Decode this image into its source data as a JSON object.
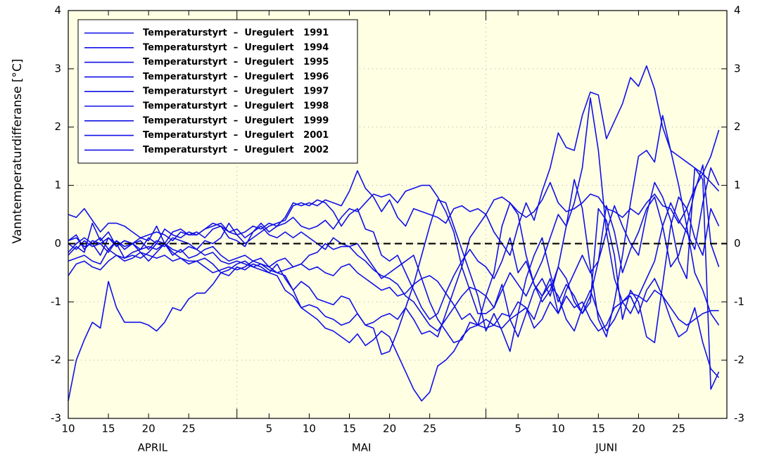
{
  "chart_data": {
    "type": "line",
    "y_label": "Vanntemperaturdifferanse [°C]",
    "months": [
      "APRIL",
      "MAI",
      "JUNI"
    ],
    "categories": [
      "10",
      null,
      null,
      null,
      null,
      "15",
      null,
      null,
      null,
      null,
      "20",
      null,
      null,
      null,
      null,
      "25",
      null,
      null,
      null,
      null,
      null,
      null,
      null,
      null,
      null,
      "5",
      null,
      null,
      null,
      null,
      "10",
      null,
      null,
      null,
      null,
      "15",
      null,
      null,
      null,
      null,
      "20",
      null,
      null,
      null,
      null,
      "25",
      null,
      null,
      null,
      null,
      null,
      null,
      null,
      null,
      null,
      null,
      "5",
      null,
      null,
      null,
      null,
      "10",
      null,
      null,
      null,
      null,
      "15",
      null,
      null,
      null,
      null,
      "20",
      null,
      null,
      null,
      null,
      "25",
      null,
      null,
      null,
      null,
      null
    ],
    "ylim": [
      -3,
      4
    ],
    "yticks": [
      -3,
      -2,
      -1,
      0,
      1,
      2,
      3,
      4
    ],
    "grid": true,
    "hline": 0,
    "series": [
      {
        "name": "Temperaturstyrt  –  Uregulert   1991",
        "color": "#1010e8",
        "values": [
          -2.7,
          -2.0,
          -1.65,
          -1.35,
          -1.45,
          -0.65,
          -1.1,
          -1.35,
          -1.35,
          -1.35,
          -1.4,
          -1.5,
          -1.35,
          -1.1,
          -1.15,
          -0.95,
          -0.85,
          -0.85,
          -0.7,
          -0.5,
          -0.55,
          -0.4,
          -0.45,
          -0.35,
          -0.4,
          -0.5,
          -0.55,
          -0.8,
          -0.9,
          -1.1,
          -1.2,
          -1.3,
          -1.45,
          -1.5,
          -1.6,
          -1.7,
          -1.55,
          -1.75,
          -1.65,
          -1.5,
          -1.6,
          -1.9,
          -2.2,
          -2.5,
          -2.7,
          -2.55,
          -2.1,
          -2.0,
          -1.85,
          -1.6,
          -1.45,
          -1.4,
          -1.45,
          -1.4,
          -1.45,
          -1.3,
          -1.2,
          -1.1,
          -1.45,
          -1.3,
          -1.0,
          -1.2,
          -0.9,
          -1.1,
          -1.0,
          -1.3,
          -1.5,
          -1.4,
          -1.1,
          -1.0,
          -0.85,
          -0.9,
          -1.0,
          -0.8,
          -0.9,
          -1.1,
          -1.3,
          -1.4,
          -1.3,
          -1.2,
          -1.15,
          -1.15
        ]
      },
      {
        "name": "Temperaturstyrt  –  Uregulert   1994",
        "color": "#1010e8",
        "values": [
          0.5,
          0.45,
          0.6,
          0.4,
          0.2,
          0.35,
          0.35,
          0.3,
          0.2,
          0.1,
          0.15,
          0.2,
          0.15,
          0.05,
          0.2,
          0.15,
          0.15,
          0.25,
          0.3,
          0.35,
          0.2,
          0.15,
          0.2,
          0.3,
          0.25,
          0.35,
          0.3,
          0.45,
          0.7,
          0.65,
          0.7,
          0.65,
          0.75,
          0.7,
          0.65,
          0.9,
          1.25,
          0.95,
          0.8,
          0.55,
          0.75,
          0.45,
          0.3,
          0.6,
          0.55,
          0.5,
          0.45,
          0.35,
          0.6,
          0.65,
          0.55,
          0.6,
          0.5,
          0.75,
          0.8,
          0.7,
          0.55,
          0.45,
          0.55,
          0.75,
          1.05,
          0.7,
          0.55,
          0.6,
          0.7,
          0.85,
          0.8,
          0.6,
          0.55,
          0.45,
          0.6,
          0.5,
          0.7,
          0.85,
          0.65,
          0.6,
          0.35,
          0.6,
          0.95,
          1.2,
          1.05,
          0.9
        ]
      },
      {
        "name": "Temperaturstyrt  –  Uregulert   1995",
        "color": "#1010e8",
        "values": [
          0.05,
          0.1,
          -0.05,
          0.0,
          0.1,
          -0.1,
          0.05,
          -0.05,
          0.0,
          0.05,
          -0.1,
          0.05,
          0.0,
          -0.1,
          -0.15,
          -0.05,
          -0.1,
          -0.2,
          -0.15,
          -0.3,
          -0.35,
          -0.3,
          -0.35,
          -0.4,
          -0.45,
          -0.5,
          -0.35,
          -0.6,
          -0.8,
          -0.65,
          -0.75,
          -0.95,
          -1.0,
          -1.05,
          -0.9,
          -0.95,
          -1.2,
          -1.4,
          -1.35,
          -1.25,
          -1.2,
          -1.3,
          -1.1,
          -1.3,
          -1.55,
          -1.5,
          -1.6,
          -1.2,
          -0.8,
          -0.4,
          0.1,
          0.3,
          0.5,
          0.2,
          0.0,
          -0.2,
          0.3,
          0.7,
          0.4,
          0.9,
          1.3,
          1.9,
          1.65,
          1.6,
          2.2,
          2.6,
          2.55,
          1.8,
          2.1,
          2.4,
          2.85,
          2.7,
          3.05,
          2.65,
          2.0,
          1.6,
          1.5,
          1.4,
          1.3,
          1.2,
          1.5,
          1.95
        ]
      },
      {
        "name": "Temperaturstyrt  –  Uregulert   1996",
        "color": "#1010e8",
        "values": [
          -0.3,
          -0.25,
          -0.2,
          -0.3,
          -0.35,
          -0.1,
          -0.2,
          -0.3,
          -0.25,
          -0.15,
          -0.2,
          -0.25,
          -0.2,
          -0.3,
          -0.25,
          -0.35,
          -0.3,
          -0.4,
          -0.5,
          -0.45,
          -0.4,
          -0.45,
          -0.4,
          -0.3,
          -0.35,
          -0.4,
          -0.3,
          -0.25,
          -0.4,
          -0.35,
          -0.2,
          -0.15,
          0.0,
          -0.1,
          -0.05,
          -0.05,
          -0.2,
          -0.3,
          -0.45,
          -0.55,
          -0.6,
          -0.7,
          -0.9,
          -1.0,
          -1.2,
          -1.4,
          -1.5,
          -1.3,
          -1.1,
          -0.9,
          -0.75,
          -0.8,
          -0.9,
          -1.1,
          -0.8,
          -0.5,
          -0.7,
          -0.9,
          -0.6,
          -0.3,
          0.1,
          0.5,
          0.3,
          0.7,
          1.3,
          2.5,
          1.6,
          0.2,
          -0.6,
          -1.0,
          -1.2,
          -0.9,
          -0.6,
          -0.3,
          0.3,
          0.7,
          0.4,
          0.2,
          -0.1,
          0.7,
          1.3,
          1.0
        ]
      },
      {
        "name": "Temperaturstyrt  –  Uregulert   1997",
        "color": "#1010e8",
        "values": [
          -0.55,
          -0.35,
          -0.3,
          -0.4,
          -0.45,
          -0.3,
          -0.2,
          -0.25,
          -0.15,
          -0.1,
          -0.05,
          -0.1,
          0.0,
          -0.15,
          -0.25,
          -0.3,
          -0.3,
          -0.25,
          -0.35,
          -0.5,
          -0.45,
          -0.35,
          -0.3,
          -0.4,
          -0.35,
          -0.45,
          -0.5,
          -0.45,
          -0.4,
          -0.35,
          -0.45,
          -0.4,
          -0.5,
          -0.55,
          -0.4,
          -0.35,
          -0.5,
          -0.6,
          -0.7,
          -0.8,
          -0.75,
          -0.9,
          -0.85,
          -0.7,
          -0.6,
          -0.55,
          -0.65,
          -0.85,
          -1.05,
          -1.3,
          -1.2,
          -1.4,
          -1.3,
          -1.4,
          -1.2,
          -1.25,
          -1.0,
          -1.1,
          -1.3,
          -0.9,
          -0.7,
          -0.9,
          -1.3,
          -1.5,
          -1.1,
          -0.8,
          -1.2,
          -1.5,
          -1.3,
          -1.0,
          -0.9,
          -1.2,
          -0.8,
          -0.6,
          -0.9,
          -1.3,
          -1.6,
          -1.5,
          -1.1,
          -1.7,
          -2.15,
          -2.3
        ]
      },
      {
        "name": "Temperaturstyrt  –  Uregulert   1998",
        "color": "#1010e8",
        "values": [
          0.05,
          0.15,
          -0.1,
          0.05,
          0.0,
          0.1,
          -0.05,
          0.05,
          0.0,
          -0.1,
          0.1,
          0.0,
          -0.05,
          0.1,
          0.05,
          0.0,
          -0.1,
          0.05,
          0.0,
          0.1,
          0.35,
          0.15,
          0.0,
          0.1,
          0.2,
          0.3,
          0.35,
          0.4,
          0.65,
          0.7,
          0.65,
          0.75,
          0.7,
          0.55,
          0.3,
          0.5,
          0.6,
          0.25,
          0.2,
          -0.2,
          -0.3,
          -0.2,
          -0.5,
          -0.8,
          -1.1,
          -1.3,
          -1.2,
          -0.85,
          -0.55,
          -0.3,
          -0.1,
          -0.3,
          -0.4,
          -0.6,
          -0.3,
          0.1,
          -0.5,
          -0.3,
          -0.7,
          -0.9,
          -0.6,
          -1.2,
          -0.8,
          -0.5,
          -0.2,
          -0.5,
          -0.3,
          0.2,
          0.65,
          0.3,
          0.0,
          -0.2,
          0.5,
          1.05,
          0.8,
          0.4,
          -0.3,
          -0.6,
          1.3,
          1.1,
          -2.5,
          -2.2
        ]
      },
      {
        "name": "Temperaturstyrt  –  Uregulert   1999",
        "color": "#1010e8",
        "values": [
          0.0,
          -0.1,
          0.05,
          -0.05,
          0.0,
          -0.15,
          0.05,
          -0.1,
          0.0,
          -0.15,
          -0.3,
          -0.15,
          0.0,
          -0.2,
          -0.1,
          -0.25,
          -0.2,
          -0.1,
          -0.05,
          -0.2,
          -0.3,
          -0.25,
          -0.2,
          -0.3,
          -0.25,
          -0.4,
          -0.5,
          -0.55,
          -0.8,
          -1.1,
          -1.05,
          -1.1,
          -1.25,
          -1.3,
          -1.4,
          -1.35,
          -1.2,
          -1.4,
          -1.45,
          -1.9,
          -1.85,
          -1.5,
          -1.1,
          -0.7,
          -0.2,
          0.3,
          0.75,
          0.7,
          0.3,
          -0.1,
          -0.5,
          -0.9,
          -1.5,
          -1.2,
          -1.5,
          -1.85,
          -1.2,
          -0.6,
          -0.2,
          0.1,
          -0.5,
          -1.0,
          -0.7,
          -0.9,
          -1.2,
          -1.0,
          0.6,
          0.4,
          -0.2,
          -1.3,
          -0.8,
          -1.0,
          -1.6,
          -1.7,
          -0.7,
          0.3,
          0.8,
          0.6,
          0.1,
          -0.2,
          0.6,
          0.3
        ]
      },
      {
        "name": "Temperaturstyrt  –  Uregulert   2001",
        "color": "#1010e8",
        "values": [
          -0.15,
          0.0,
          0.1,
          0.0,
          -0.2,
          0.1,
          0.0,
          -0.25,
          -0.2,
          -0.25,
          -0.15,
          0.0,
          0.25,
          0.15,
          0.1,
          0.2,
          0.15,
          0.25,
          0.35,
          0.3,
          0.2,
          0.25,
          0.1,
          0.2,
          0.3,
          0.15,
          0.1,
          0.2,
          0.1,
          0.2,
          0.1,
          0.0,
          -0.1,
          0.1,
          0.0,
          -0.05,
          0.0,
          -0.2,
          -0.4,
          -0.6,
          -0.5,
          -0.4,
          -0.3,
          -0.2,
          -0.6,
          -1.0,
          -1.3,
          -1.5,
          -1.7,
          -1.65,
          -1.35,
          -1.4,
          -0.9,
          -0.5,
          0.3,
          0.7,
          0.5,
          -0.2,
          -0.7,
          -1.0,
          -0.8,
          -0.4,
          0.3,
          1.1,
          0.6,
          -0.4,
          -1.3,
          -1.6,
          -1.0,
          -0.2,
          0.7,
          1.5,
          1.6,
          1.4,
          2.2,
          1.6,
          1.0,
          0.3,
          -0.5,
          -0.8,
          -1.2,
          -1.4
        ]
      },
      {
        "name": "Temperaturstyrt  –  Uregulert   2002",
        "color": "#1010e8",
        "values": [
          -0.2,
          -0.05,
          -0.15,
          0.35,
          0.05,
          0.2,
          -0.05,
          0.05,
          0.0,
          0.1,
          0.05,
          0.3,
          0.0,
          0.2,
          0.25,
          0.15,
          0.2,
          0.1,
          0.25,
          0.3,
          0.1,
          0.05,
          -0.05,
          0.2,
          0.35,
          0.2,
          0.3,
          0.35,
          0.45,
          0.3,
          0.25,
          0.3,
          0.4,
          0.25,
          0.45,
          0.6,
          0.55,
          0.7,
          0.85,
          0.8,
          0.85,
          0.7,
          0.9,
          0.95,
          1.0,
          1.0,
          0.8,
          0.55,
          0.2,
          -0.4,
          -0.8,
          -1.2,
          -1.2,
          -1.1,
          -0.7,
          -1.3,
          -1.6,
          -1.2,
          -0.8,
          -0.6,
          -0.9,
          -0.4,
          -0.6,
          -1.0,
          -1.2,
          -0.9,
          -0.3,
          0.65,
          0.2,
          -0.5,
          -0.1,
          0.2,
          0.6,
          0.8,
          0.3,
          -0.4,
          -0.2,
          0.3,
          0.9,
          1.35,
          0.0,
          -0.4
        ]
      }
    ]
  }
}
